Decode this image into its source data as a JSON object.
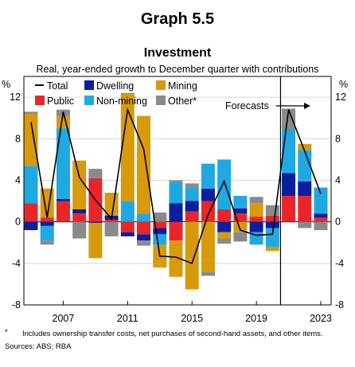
{
  "title": "Graph 5.5",
  "subtitle": "Investment",
  "description": "Real, year-ended growth to December quarter with contributions",
  "unit_left": "%",
  "unit_right": "%",
  "forecasts_label": "Forecasts",
  "footnote_marker": "*",
  "footnote": "Includes ownership transfer costs, net purchases of second-hand assets, and other items.",
  "sources": "Sources: ABS; RBA",
  "colors": {
    "Public": "#e8262a",
    "Dwelling": "#0b1f9e",
    "Non-mining": "#20a8e2",
    "Mining": "#d89a0a",
    "Other*": "#8a8a8a",
    "Total": "#000000"
  },
  "chart_data": {
    "type": "bar",
    "stacked": true,
    "title": "Investment",
    "subtitle": "Real, year-ended growth to December quarter with contributions",
    "ylabel": "%",
    "ylim": [
      -8,
      14
    ],
    "yticks": [
      -8,
      -4,
      0,
      4,
      8,
      12
    ],
    "x": [
      2005,
      2006,
      2007,
      2008,
      2009,
      2010,
      2011,
      2012,
      2013,
      2014,
      2015,
      2016,
      2017,
      2018,
      2019,
      2020,
      2021,
      2022,
      2023
    ],
    "xticks": [
      "2007",
      "2011",
      "2015",
      "2019",
      "2023"
    ],
    "forecast_start": 2020.5,
    "legend": [
      "Total",
      "Dwelling",
      "Mining",
      "Public",
      "Non-mining",
      "Other*"
    ],
    "legend_position": "top",
    "series": [
      {
        "name": "Public",
        "values": [
          1.8,
          0.4,
          2.0,
          0.8,
          4.2,
          0.2,
          -1.0,
          -1.2,
          -0.6,
          -1.8,
          1.0,
          2.0,
          1.2,
          0.8,
          0.5,
          0.6,
          2.5,
          2.5,
          0.4
        ]
      },
      {
        "name": "Dwelling",
        "values": [
          -0.8,
          -0.4,
          0.2,
          0.4,
          -0.1,
          0.4,
          -0.4,
          -0.6,
          -0.6,
          1.8,
          1.0,
          1.2,
          -1.0,
          0.5,
          -1.0,
          -0.6,
          2.2,
          1.4,
          0.4
        ]
      },
      {
        "name": "Non-mining",
        "values": [
          3.6,
          -1.4,
          6.8,
          0.0,
          0.1,
          0.0,
          2.0,
          0.8,
          -1.0,
          2.0,
          1.3,
          2.4,
          4.8,
          1.2,
          -1.2,
          -1.8,
          4.2,
          3.0,
          2.5
        ]
      },
      {
        "name": "Mining",
        "values": [
          5.0,
          2.8,
          1.2,
          4.7,
          -3.4,
          2.2,
          10.3,
          9.4,
          -2.2,
          -3.5,
          -6.5,
          -4.8,
          -0.6,
          -1.0,
          1.3,
          -0.4,
          0.0,
          0.6,
          0.0
        ]
      },
      {
        "name": "Other*",
        "values": [
          0.2,
          -0.4,
          0.6,
          -1.6,
          0.8,
          -1.4,
          0.1,
          -0.5,
          0.9,
          0.2,
          0.4,
          -0.4,
          -0.5,
          -0.9,
          0.6,
          1.0,
          2.0,
          -0.6,
          -0.8
        ]
      },
      {
        "name": "Total",
        "type": "line",
        "values": [
          9.6,
          0.4,
          10.6,
          4.3,
          2.1,
          0.3,
          10.8,
          7.0,
          -3.3,
          -3.4,
          -4.0,
          0.7,
          3.9,
          -0.8,
          -1.3,
          -1.2,
          10.8,
          6.8,
          2.7
        ]
      }
    ]
  }
}
